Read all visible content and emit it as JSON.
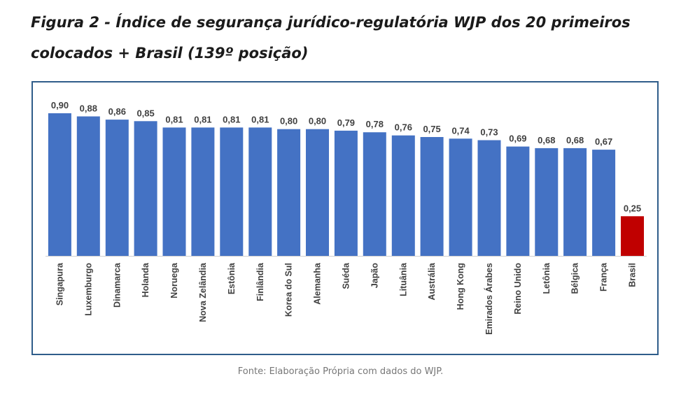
{
  "figure": {
    "title": "Figura 2 - Índice de segurança jurídico-regulatória WJP dos 20 primeiros colocados + Brasil (139º posição)",
    "source": "Fonte: Elaboração Própria com dados do WJP."
  },
  "colors": {
    "bar": "#4472c4",
    "highlight": "#c00000",
    "frame": "#2f5d8a",
    "label_text": "#404040"
  },
  "chart_data": {
    "type": "bar",
    "title": "",
    "xlabel": "",
    "ylabel": "",
    "ylim": [
      0,
      0.9
    ],
    "grid": false,
    "legend": "none",
    "highlight_category": "Brasil",
    "categories": [
      "Singapura",
      "Luxemburgo",
      "Dinamarca",
      "Holanda",
      "Noruega",
      "Nova Zelândia",
      "Estônia",
      "Finlândia",
      "Korea do Sul",
      "Alemanha",
      "Suéda",
      "Japão",
      "Lituânia",
      "Austrália",
      "Hong Kong",
      "Emirados Árabes",
      "Reino Unido",
      "Letônia",
      "Bélgica",
      "França",
      "Brasil"
    ],
    "values": [
      0.9,
      0.88,
      0.86,
      0.85,
      0.81,
      0.81,
      0.81,
      0.81,
      0.8,
      0.8,
      0.79,
      0.78,
      0.76,
      0.75,
      0.74,
      0.73,
      0.69,
      0.68,
      0.68,
      0.67,
      0.25
    ],
    "value_labels": [
      "0,90",
      "0,88",
      "0,86",
      "0,85",
      "0,81",
      "0,81",
      "0,81",
      "0,81",
      "0,80",
      "0,80",
      "0,79",
      "0,78",
      "0,76",
      "0,75",
      "0,74",
      "0,73",
      "0,69",
      "0,68",
      "0,68",
      "0,67",
      "0,25"
    ]
  }
}
